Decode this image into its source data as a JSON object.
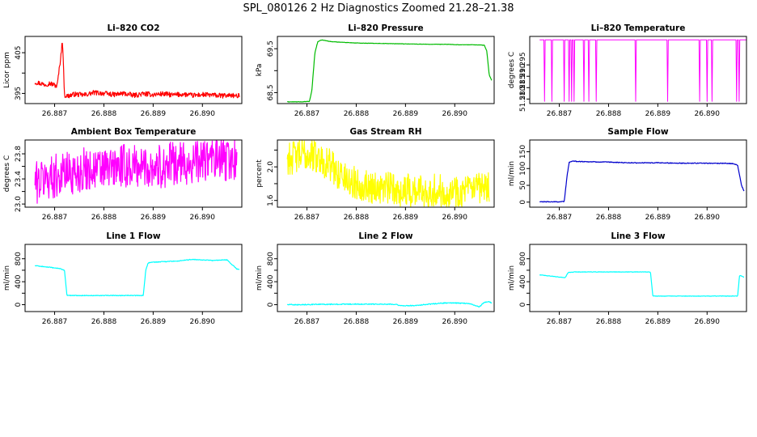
{
  "figure_title": "SPL_080126  2 Hz Diagnostics Zoomed 21.28–21.38",
  "chart_data": [
    {
      "type": "line",
      "title": "Li–820 CO2",
      "ylabel": "Licor ppm",
      "color": "#ff0000",
      "xlim": [
        26.8864,
        26.8908
      ],
      "ylim": [
        392.5,
        409
      ],
      "xticks": [
        26.887,
        26.888,
        26.889,
        26.89
      ],
      "xtick_labels": [
        "26.887",
        "26.888",
        "26.889",
        "26.890"
      ],
      "yticks": [
        395,
        400,
        405
      ],
      "ytick_labels": [
        "395",
        "",
        "405"
      ],
      "series": [
        {
          "name": "Li-820 CO2",
          "x": [
            26.8866,
            26.8868,
            26.8869,
            26.88705,
            26.88712,
            26.88716,
            26.8872,
            26.88725,
            26.8874,
            26.8876,
            26.8878,
            26.888,
            26.8882,
            26.8884,
            26.8886,
            26.8888,
            26.889,
            26.8892,
            26.8894,
            26.8896,
            26.8898,
            26.89,
            26.8902,
            26.8904,
            26.8906,
            26.8907,
            26.89075
          ],
          "y": [
            397.8,
            397.2,
            397.5,
            396.8,
            403.5,
            408.3,
            394.6,
            394.3,
            394.8,
            394.6,
            395.2,
            395.0,
            394.7,
            395.0,
            394.5,
            394.9,
            394.7,
            394.9,
            394.6,
            394.8,
            394.5,
            394.7,
            394.6,
            394.4,
            394.6,
            394.2,
            394.5
          ],
          "noise": 0.6
        }
      ]
    },
    {
      "type": "line",
      "title": "Li–820 Pressure",
      "ylabel": "kPa",
      "color": "#00bb00",
      "xlim": [
        26.8864,
        26.8908
      ],
      "ylim": [
        68.25,
        69.78
      ],
      "xticks": [
        26.887,
        26.888,
        26.889,
        26.89
      ],
      "xtick_labels": [
        "26.887",
        "26.888",
        "26.889",
        "26.890"
      ],
      "yticks": [
        68.5,
        69.0,
        69.5
      ],
      "ytick_labels": [
        "68.5",
        "",
        "69.5"
      ],
      "series": [
        {
          "name": "Li-820 Pressure",
          "x": [
            26.8866,
            26.8869,
            26.88705,
            26.8871,
            26.88716,
            26.88722,
            26.8873,
            26.8875,
            26.888,
            26.8885,
            26.889,
            26.8895,
            26.8899,
            26.89,
            26.8904,
            26.8906,
            26.89065,
            26.8907,
            26.89075
          ],
          "y": [
            68.29,
            68.29,
            68.3,
            68.55,
            69.4,
            69.66,
            69.7,
            69.66,
            69.63,
            69.62,
            69.61,
            69.6,
            69.6,
            69.59,
            69.59,
            69.58,
            69.45,
            68.9,
            68.78
          ],
          "noise": 0.004
        }
      ]
    },
    {
      "type": "line",
      "title": "Li–820 Temperature",
      "ylabel": "degrees C",
      "color": "#ff00ff",
      "xlim": [
        26.8864,
        26.8908
      ],
      "ylim": [
        51.278,
        51.3075
      ],
      "xticks": [
        26.887,
        26.888,
        26.889,
        26.89
      ],
      "xtick_labels": [
        "26.887",
        "26.888",
        "26.889",
        "26.890"
      ],
      "yticks": [
        51.28,
        51.285,
        51.29,
        51.295
      ],
      "ytick_labels": [
        "51.280",
        "51.285",
        "51.290",
        "51.295"
      ],
      "series": [
        {
          "name": "Li-820 Temperature",
          "x": [
            26.8866,
            26.8908
          ],
          "y": [
            51.306,
            51.306
          ],
          "spikes": [
            26.8867,
            26.88685,
            26.8871,
            26.8872,
            26.88725,
            26.8873,
            26.8875,
            26.8876,
            26.88775,
            26.88855,
            26.8892,
            26.88985,
            26.89,
            26.8901,
            26.8906,
            26.89065
          ],
          "spike_to": 51.279
        }
      ]
    },
    {
      "type": "line",
      "title": "Ambient Box Temperature",
      "ylabel": "degrees C",
      "color": "#ff00ff",
      "xlim": [
        26.8864,
        26.8908
      ],
      "ylim": [
        22.95,
        24.02
      ],
      "xticks": [
        26.887,
        26.888,
        26.889,
        26.89
      ],
      "xtick_labels": [
        "26.887",
        "26.888",
        "26.889",
        "26.890"
      ],
      "yticks": [
        23.0,
        23.2,
        23.4,
        23.6,
        23.8
      ],
      "ytick_labels": [
        "23.0",
        "",
        "23.4",
        "",
        "23.8"
      ],
      "series": [
        {
          "name": "Ambient Box Temperature",
          "x": [
            26.8866,
            26.8868,
            26.887,
            26.8872,
            26.8874,
            26.8876,
            26.8878,
            26.888,
            26.8882,
            26.8884,
            26.8886,
            26.8888,
            26.889,
            26.8892,
            26.8894,
            26.8896,
            26.8898,
            26.89,
            26.8902,
            26.8904,
            26.8906,
            26.8907
          ],
          "y": [
            23.35,
            23.4,
            23.45,
            23.5,
            23.5,
            23.55,
            23.55,
            23.55,
            23.58,
            23.6,
            23.6,
            23.6,
            23.6,
            23.6,
            23.65,
            23.65,
            23.65,
            23.7,
            23.7,
            23.7,
            23.7,
            23.72
          ],
          "noise": 0.35
        }
      ]
    },
    {
      "type": "line",
      "title": "Gas Stream RH",
      "ylabel": "percent",
      "color": "#ffff00",
      "xlim": [
        26.8864,
        26.8908
      ],
      "ylim": [
        1.52,
        2.32
      ],
      "xticks": [
        26.887,
        26.888,
        26.889,
        26.89
      ],
      "xtick_labels": [
        "26.887",
        "26.888",
        "26.889",
        "26.890"
      ],
      "yticks": [
        1.6,
        1.8,
        2.0,
        2.2
      ],
      "ytick_labels": [
        "1.6",
        "",
        "2.0",
        ""
      ],
      "series": [
        {
          "name": "Gas Stream RH",
          "x": [
            26.8866,
            26.8868,
            26.887,
            26.8872,
            26.8874,
            26.8876,
            26.8878,
            26.888,
            26.8882,
            26.8884,
            26.8886,
            26.8888,
            26.889,
            26.8892,
            26.8894,
            26.8896,
            26.8898,
            26.89,
            26.8902,
            26.8904,
            26.8906,
            26.8907
          ],
          "y": [
            2.1,
            2.12,
            2.15,
            2.12,
            2.05,
            1.95,
            1.85,
            1.8,
            1.78,
            1.75,
            1.75,
            1.73,
            1.72,
            1.72,
            1.72,
            1.72,
            1.71,
            1.72,
            1.71,
            1.72,
            1.73,
            1.75
          ],
          "noise": 0.2
        }
      ]
    },
    {
      "type": "line",
      "title": "Sample Flow",
      "ylabel": "ml/min",
      "color": "#0000cc",
      "xlim": [
        26.8864,
        26.8908
      ],
      "ylim": [
        -15,
        185
      ],
      "xticks": [
        26.887,
        26.888,
        26.889,
        26.89
      ],
      "xtick_labels": [
        "26.887",
        "26.888",
        "26.889",
        "26.890"
      ],
      "yticks": [
        0,
        50,
        100,
        150
      ],
      "ytick_labels": [
        "0",
        "50",
        "100",
        "150"
      ],
      "series": [
        {
          "name": "Sample Flow",
          "x": [
            26.8866,
            26.887,
            26.8871,
            26.88716,
            26.8872,
            26.88725,
            26.8874,
            26.888,
            26.8885,
            26.889,
            26.8895,
            26.89,
            26.8905,
            26.89062,
            26.8907,
            26.89075
          ],
          "y": [
            1,
            1,
            2,
            80,
            118,
            122,
            121,
            119,
            117,
            117,
            116,
            116,
            115,
            110,
            50,
            32
          ],
          "noise": 1.2
        }
      ]
    },
    {
      "type": "line",
      "title": "Line 1 Flow",
      "ylabel": "ml/min",
      "color": "#00ffff",
      "xlim": [
        26.8864,
        26.8908
      ],
      "ylim": [
        -120,
        1050
      ],
      "xticks": [
        26.887,
        26.888,
        26.889,
        26.89
      ],
      "xtick_labels": [
        "26.887",
        "26.888",
        "26.889",
        "26.890"
      ],
      "yticks": [
        0,
        200,
        400,
        600,
        800
      ],
      "ytick_labels": [
        "0",
        "",
        "400",
        "",
        "800"
      ],
      "series": [
        {
          "name": "Line 1 Flow",
          "x": [
            26.8866,
            26.8868,
            26.8871,
            26.8872,
            26.88725,
            26.8875,
            26.888,
            26.8885,
            26.8888,
            26.88885,
            26.8889,
            26.889,
            26.8895,
            26.8898,
            26.8902,
            26.8905,
            26.8906,
            26.8907,
            26.89075
          ],
          "y": [
            680,
            660,
            630,
            600,
            160,
            160,
            160,
            160,
            160,
            600,
            730,
            740,
            760,
            790,
            770,
            780,
            700,
            620,
            620
          ],
          "noise": 6
        }
      ]
    },
    {
      "type": "line",
      "title": "Line 2 Flow",
      "ylabel": "ml/min",
      "color": "#00ffff",
      "xlim": [
        26.8864,
        26.8908
      ],
      "ylim": [
        -120,
        1050
      ],
      "xticks": [
        26.887,
        26.888,
        26.889,
        26.89
      ],
      "xtick_labels": [
        "26.887",
        "26.888",
        "26.889",
        "26.890"
      ],
      "yticks": [
        0,
        200,
        400,
        600,
        800
      ],
      "ytick_labels": [
        "0",
        "",
        "400",
        "",
        "800"
      ],
      "series": [
        {
          "name": "Line 2 Flow",
          "x": [
            26.8866,
            26.8868,
            26.8872,
            26.888,
            26.8885,
            26.8888,
            26.8889,
            26.8892,
            26.8895,
            26.8898,
            26.89,
            26.8903,
            26.8905,
            26.8906,
            26.8907,
            26.89075
          ],
          "y": [
            5,
            0,
            5,
            10,
            10,
            8,
            -20,
            -15,
            10,
            30,
            30,
            20,
            -40,
            40,
            50,
            30
          ],
          "noise": 8
        }
      ]
    },
    {
      "type": "line",
      "title": "Line 3 Flow",
      "ylabel": "ml/min",
      "color": "#00ffff",
      "xlim": [
        26.8864,
        26.8908
      ],
      "ylim": [
        -120,
        1050
      ],
      "xticks": [
        26.887,
        26.888,
        26.889,
        26.89
      ],
      "xtick_labels": [
        "26.887",
        "26.888",
        "26.889",
        "26.890"
      ],
      "yticks": [
        0,
        200,
        400,
        600,
        800
      ],
      "ytick_labels": [
        "0",
        "",
        "400",
        "",
        "800"
      ],
      "series": [
        {
          "name": "Line 3 Flow",
          "x": [
            26.8866,
            26.887,
            26.88712,
            26.88718,
            26.8873,
            26.888,
            26.8885,
            26.8888,
            26.88885,
            26.8889,
            26.8895,
            26.89,
            26.8905,
            26.89062,
            26.89066,
            26.89075
          ],
          "y": [
            520,
            480,
            470,
            560,
            570,
            570,
            570,
            570,
            570,
            150,
            150,
            150,
            150,
            150,
            510,
            480
          ],
          "noise": 4
        }
      ]
    }
  ]
}
